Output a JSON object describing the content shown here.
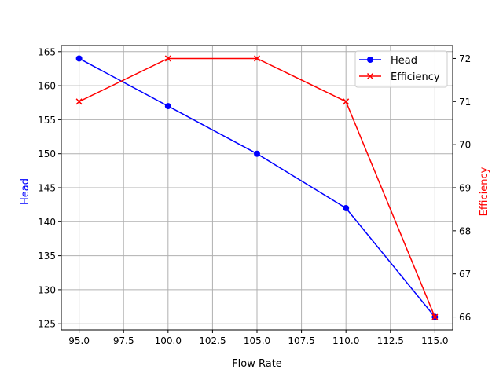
{
  "chart_data": {
    "type": "line",
    "title": "",
    "xlabel": "Flow Rate",
    "ylabel": "Head",
    "y2label": "Efficiency",
    "x": [
      95,
      100,
      105,
      110,
      115
    ],
    "series": [
      {
        "name": "Head",
        "axis": "left",
        "color": "#0000ff",
        "marker": "o",
        "values": [
          164,
          157,
          150,
          142,
          126
        ]
      },
      {
        "name": "Efficiency",
        "axis": "right",
        "color": "#ff0000",
        "marker": "x",
        "values": [
          71,
          72,
          72,
          71,
          66
        ]
      }
    ],
    "xticks": [
      "95.0",
      "97.5",
      "100.0",
      "102.5",
      "105.0",
      "107.5",
      "110.0",
      "112.5",
      "115.0"
    ],
    "yticks": [
      "125",
      "130",
      "135",
      "140",
      "145",
      "150",
      "155",
      "160",
      "165"
    ],
    "y2ticks": [
      "66",
      "67",
      "68",
      "69",
      "70",
      "71",
      "72"
    ],
    "xlim": [
      94.0,
      116.0
    ],
    "ylim": [
      124.1,
      165.9
    ],
    "y2lim": [
      65.7,
      72.3
    ],
    "grid": true,
    "legend_position": "upper right"
  },
  "legend": {
    "items": [
      {
        "label": "Head",
        "color": "#0000ff",
        "marker": "circle"
      },
      {
        "label": "Efficiency",
        "color": "#ff0000",
        "marker": "x"
      }
    ]
  }
}
